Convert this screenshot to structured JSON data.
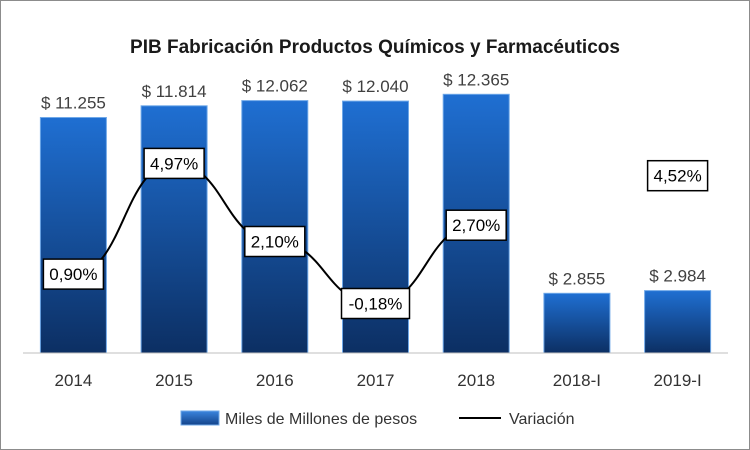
{
  "chart_data": {
    "type": "bar",
    "title": "PIB Fabricación Productos Químicos y Farmacéuticos",
    "categories": [
      "2014",
      "2015",
      "2016",
      "2017",
      "2018",
      "2018-I",
      "2019-I"
    ],
    "series": [
      {
        "name": "Miles de Millones de pesos",
        "type": "bar",
        "values": [
          11255,
          11814,
          12062,
          12040,
          12365,
          2855,
          2984
        ],
        "labels": [
          "$ 11.255",
          "$ 11.814",
          "$ 12.062",
          "$ 12.040",
          "$ 12.365",
          "$ 2.855",
          "$ 2.984"
        ],
        "color": "#1f66c4"
      },
      {
        "name": "Variación",
        "type": "line",
        "values": [
          0.9,
          4.97,
          2.1,
          -0.18,
          2.7,
          null,
          4.52
        ],
        "labels": [
          "0,90%",
          "4,97%",
          "2,10%",
          "-0,18%",
          "2,70%",
          null,
          "4,52%"
        ],
        "color": "#000000"
      }
    ],
    "ylim": [
      0,
      13000
    ],
    "y2lim": [
      -2,
      8
    ],
    "grid": false,
    "legend": "bottom"
  }
}
